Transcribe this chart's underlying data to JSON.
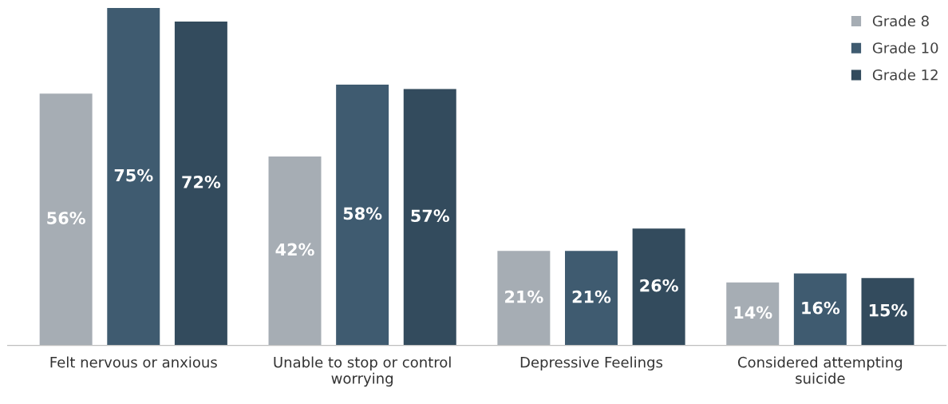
{
  "chart_data": {
    "type": "bar",
    "categories": [
      "Felt nervous or anxious",
      "Unable to stop or control worrying",
      "Depressive Feelings",
      "Considered attempting suicide"
    ],
    "series": [
      {
        "name": "Grade 8",
        "color": "#a6adb4",
        "values": [
          56,
          42,
          21,
          14
        ],
        "value_labels": [
          "56%",
          "42%",
          "21%",
          "14%"
        ]
      },
      {
        "name": "Grade 10",
        "color": "#3f5b70",
        "values": [
          75,
          58,
          21,
          16
        ],
        "value_labels": [
          "75%",
          "58%",
          "21%",
          "16%"
        ]
      },
      {
        "name": "Grade 12",
        "color": "#334b5d",
        "values": [
          72,
          57,
          26,
          15
        ],
        "value_labels": [
          "72%",
          "57%",
          "26%",
          "15%"
        ]
      }
    ],
    "legend": "top right",
    "grid": false
  }
}
